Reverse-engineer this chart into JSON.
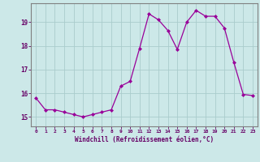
{
  "x": [
    0,
    1,
    2,
    3,
    4,
    5,
    6,
    7,
    8,
    9,
    10,
    11,
    12,
    13,
    14,
    15,
    16,
    17,
    18,
    19,
    20,
    21,
    22,
    23
  ],
  "y": [
    15.8,
    15.3,
    15.3,
    15.2,
    15.1,
    15.0,
    15.1,
    15.2,
    15.3,
    16.3,
    16.5,
    17.9,
    19.35,
    19.1,
    18.65,
    17.85,
    19.0,
    19.5,
    19.25,
    19.25,
    18.75,
    17.3,
    15.95,
    15.9
  ],
  "line_color": "#990099",
  "marker": "D",
  "marker_size": 2,
  "bg_color": "#cce8e8",
  "grid_color": "#aacccc",
  "xlabel": "Windchill (Refroidissement éolien,°C)",
  "xlabel_color": "#660066",
  "tick_color": "#660066",
  "ylim": [
    14.6,
    19.8
  ],
  "xlim": [
    -0.5,
    23.5
  ],
  "yticks": [
    15,
    16,
    17,
    18,
    19
  ],
  "xticks": [
    0,
    1,
    2,
    3,
    4,
    5,
    6,
    7,
    8,
    9,
    10,
    11,
    12,
    13,
    14,
    15,
    16,
    17,
    18,
    19,
    20,
    21,
    22,
    23
  ],
  "xtick_labels": [
    "0",
    "1",
    "2",
    "3",
    "4",
    "5",
    "6",
    "7",
    "8",
    "9",
    "10",
    "11",
    "12",
    "13",
    "14",
    "15",
    "16",
    "17",
    "18",
    "19",
    "20",
    "21",
    "22",
    "23"
  ],
  "spine_color": "#808080"
}
